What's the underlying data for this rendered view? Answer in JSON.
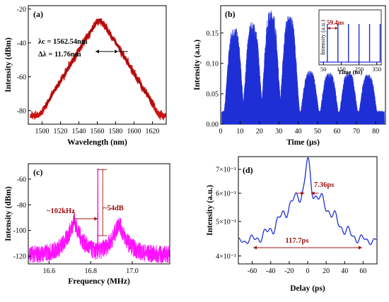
{
  "chart_data": [
    {
      "panel": "(a)",
      "type": "line",
      "xlabel": "Wavelength (nm)",
      "ylabel": "Intensity (dBm)",
      "xlim": [
        1485,
        1635
      ],
      "ylim": [
        -88,
        -18
      ],
      "xticks": [
        1500,
        1520,
        1540,
        1560,
        1580,
        1600,
        1620
      ],
      "yticks": [
        -80,
        -60,
        -40,
        -20
      ],
      "peak_x": 1562.54,
      "peak_y": -26,
      "edge_y": -83,
      "annotations": [
        "λc = 1562.54nm",
        "Δλ = 11.76nm"
      ],
      "colors": {
        "data": "#cc1111",
        "fit": "#7a0f0f"
      }
    },
    {
      "panel": "(b)",
      "type": "area",
      "xlabel": "Time (μs)",
      "ylabel": "Intensity (a.u.)",
      "xlim": [
        0,
        85
      ],
      "ylim": [
        0,
        0.195
      ],
      "xticks": [
        0,
        10,
        20,
        30,
        40,
        50,
        60,
        70,
        80
      ],
      "yticks": [
        0.0,
        0.05,
        0.1,
        0.15
      ],
      "envelopes": [
        {
          "center": 7,
          "peak": 0.16
        },
        {
          "center": 16.5,
          "peak": 0.168
        },
        {
          "center": 26,
          "peak": 0.188
        },
        {
          "center": 35.5,
          "peak": 0.18
        },
        {
          "center": 46,
          "peak": 0.088
        },
        {
          "center": 56,
          "peak": 0.085
        },
        {
          "center": 66,
          "peak": 0.086
        },
        {
          "center": 76,
          "peak": 0.082
        }
      ],
      "inset": {
        "xlabel": "Time (ns)",
        "ylabel": "Intensity (a.u.)",
        "xlim": [
          25,
          375
        ],
        "xticks": [
          50,
          150,
          250,
          350
        ],
        "pulse_times": [
          72,
          131.4,
          190.8,
          250.2,
          309.6,
          369
        ],
        "annotation": "59.4ns"
      },
      "colors": {
        "data": "#1f2fd6",
        "annotation": "#a01010"
      }
    },
    {
      "panel": "(c)",
      "type": "line",
      "xlabel": "Frequency (MHz)",
      "ylabel": "Intensity (dBm)",
      "xlim": [
        16.5,
        17.18
      ],
      "ylim": [
        -126,
        -48
      ],
      "xticks": [
        16.6,
        16.8,
        17.0
      ],
      "yticks": [
        -120,
        -100,
        -80,
        -60
      ],
      "peaks": [
        {
          "x": 16.72,
          "y": -90
        },
        {
          "x": 16.834,
          "y": -52
        },
        {
          "x": 16.936,
          "y": -92
        }
      ],
      "noise_floor": -120,
      "annotations": [
        "~102kHz",
        "~54dB"
      ],
      "colors": {
        "data": "#ff10ff",
        "annotation": "#a01010"
      }
    },
    {
      "panel": "(d)",
      "type": "line",
      "xlabel": "Delay (ps)",
      "ylabel": "Intensity (a.u.)",
      "xlim": [
        -75,
        75
      ],
      "yscale": "log",
      "ylim": [
        0.38,
        0.76
      ],
      "xticks": [
        -60,
        -40,
        -20,
        0,
        20,
        40,
        60
      ],
      "yticks": [
        {
          "v": 0.4,
          "label": "4×10⁻¹"
        },
        {
          "v": 0.5,
          "label": "5×10⁻¹"
        },
        {
          "v": 0.6,
          "label": "6×10⁻¹"
        },
        {
          "v": 0.7,
          "label": "7×10⁻¹"
        }
      ],
      "peak_y": 0.73,
      "annotations": [
        "7.36ps",
        "117.7ps"
      ],
      "colors": {
        "data": "#1f2fd6",
        "annotation": "#a01010"
      }
    }
  ]
}
